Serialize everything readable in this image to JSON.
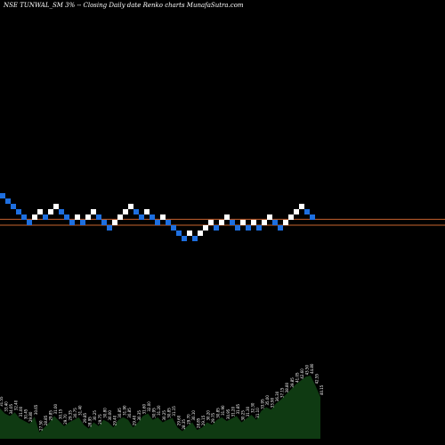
{
  "header": {
    "title": "NSE TUNWAL_SM 3% -- Closing Daily date Renko charts MunafaSutra.com"
  },
  "colors": {
    "background": "#000000",
    "brick_up": "#ffffff",
    "brick_down": "#1e6fe0",
    "reference_line": "#c8632e",
    "volume_fill": "#0f3a12",
    "label_text": "#ffffff"
  },
  "chart_data": {
    "type": "renko",
    "box_size_percent": 3,
    "bricks": [
      {
        "level": 0,
        "dir": "down"
      },
      {
        "level": -1,
        "dir": "down"
      },
      {
        "level": -2,
        "dir": "down"
      },
      {
        "level": -3,
        "dir": "down"
      },
      {
        "level": -4,
        "dir": "down"
      },
      {
        "level": -5,
        "dir": "down"
      },
      {
        "level": -4,
        "dir": "up"
      },
      {
        "level": -3,
        "dir": "up"
      },
      {
        "level": -4,
        "dir": "down"
      },
      {
        "level": -3,
        "dir": "up"
      },
      {
        "level": -2,
        "dir": "up"
      },
      {
        "level": -3,
        "dir": "down"
      },
      {
        "level": -4,
        "dir": "down"
      },
      {
        "level": -5,
        "dir": "down"
      },
      {
        "level": -4,
        "dir": "up"
      },
      {
        "level": -5,
        "dir": "down"
      },
      {
        "level": -4,
        "dir": "up"
      },
      {
        "level": -3,
        "dir": "up"
      },
      {
        "level": -4,
        "dir": "down"
      },
      {
        "level": -5,
        "dir": "down"
      },
      {
        "level": -6,
        "dir": "down"
      },
      {
        "level": -5,
        "dir": "up"
      },
      {
        "level": -4,
        "dir": "up"
      },
      {
        "level": -3,
        "dir": "up"
      },
      {
        "level": -2,
        "dir": "up"
      },
      {
        "level": -3,
        "dir": "down"
      },
      {
        "level": -4,
        "dir": "down"
      },
      {
        "level": -3,
        "dir": "up"
      },
      {
        "level": -4,
        "dir": "down"
      },
      {
        "level": -5,
        "dir": "down"
      },
      {
        "level": -4,
        "dir": "up"
      },
      {
        "level": -5,
        "dir": "down"
      },
      {
        "level": -6,
        "dir": "down"
      },
      {
        "level": -7,
        "dir": "down"
      },
      {
        "level": -8,
        "dir": "down"
      },
      {
        "level": -7,
        "dir": "up"
      },
      {
        "level": -8,
        "dir": "down"
      },
      {
        "level": -7,
        "dir": "up"
      },
      {
        "level": -6,
        "dir": "up"
      },
      {
        "level": -5,
        "dir": "up"
      },
      {
        "level": -6,
        "dir": "down"
      },
      {
        "level": -5,
        "dir": "up"
      },
      {
        "level": -4,
        "dir": "up"
      },
      {
        "level": -5,
        "dir": "down"
      },
      {
        "level": -6,
        "dir": "down"
      },
      {
        "level": -5,
        "dir": "up"
      },
      {
        "level": -6,
        "dir": "down"
      },
      {
        "level": -5,
        "dir": "up"
      },
      {
        "level": -6,
        "dir": "down"
      },
      {
        "level": -5,
        "dir": "up"
      },
      {
        "level": -4,
        "dir": "up"
      },
      {
        "level": -5,
        "dir": "down"
      },
      {
        "level": -6,
        "dir": "down"
      },
      {
        "level": -5,
        "dir": "up"
      },
      {
        "level": -4,
        "dir": "up"
      },
      {
        "level": -3,
        "dir": "up"
      },
      {
        "level": -2,
        "dir": "up"
      },
      {
        "level": -3,
        "dir": "down"
      },
      {
        "level": -4,
        "dir": "down"
      }
    ],
    "reference_lines": [
      -4.4,
      -5.5
    ],
    "volume_labels": [
      "31.55",
      "33.40",
      "34.05",
      "32.40",
      "31.00",
      "30.45",
      "29.80",
      "30.65",
      "27.50",
      "28.85",
      "29.85",
      "31.00",
      "30.15",
      "29.70",
      "29.35",
      "30.75",
      "31.40",
      "29.85",
      "28.95",
      "30.25",
      "29.75",
      "30.80",
      "30.00",
      "29.40",
      "30.85",
      "31.90",
      "30.85",
      "29.40",
      "30.35",
      "31.60",
      "32.00",
      "30.95",
      "31.20",
      "30.25",
      "30.85",
      "31.15",
      "29.60",
      "28.35",
      "29.70",
      "30.10",
      "28.85",
      "29.15",
      "30.20",
      "29.75",
      "30.85",
      "31.90",
      "30.95",
      "31.20",
      "31.85",
      "30.25",
      "31.30",
      "32.30",
      "31.10",
      "33.95",
      "35.00",
      "33.90",
      "36.30",
      "37.15",
      "38.80",
      "39.85",
      "41.05",
      "42.60",
      "43.50",
      "44.80",
      "42.55",
      "40.15"
    ],
    "volume_profile": [
      0.48,
      0.4,
      0.36,
      0.42,
      0.32,
      0.28,
      0.24,
      0.35,
      0.1,
      0.18,
      0.26,
      0.36,
      0.28,
      0.2,
      0.26,
      0.3,
      0.34,
      0.22,
      0.16,
      0.26,
      0.2,
      0.3,
      0.26,
      0.18,
      0.3,
      0.34,
      0.3,
      0.18,
      0.26,
      0.36,
      0.4,
      0.3,
      0.34,
      0.26,
      0.3,
      0.33,
      0.18,
      0.12,
      0.2,
      0.26,
      0.14,
      0.18,
      0.26,
      0.22,
      0.3,
      0.34,
      0.28,
      0.32,
      0.36,
      0.26,
      0.32,
      0.38,
      0.3,
      0.44,
      0.5,
      0.46,
      0.56,
      0.62,
      0.7,
      0.78,
      0.86,
      0.92,
      0.98,
      1.0,
      0.84,
      0.66
    ]
  }
}
